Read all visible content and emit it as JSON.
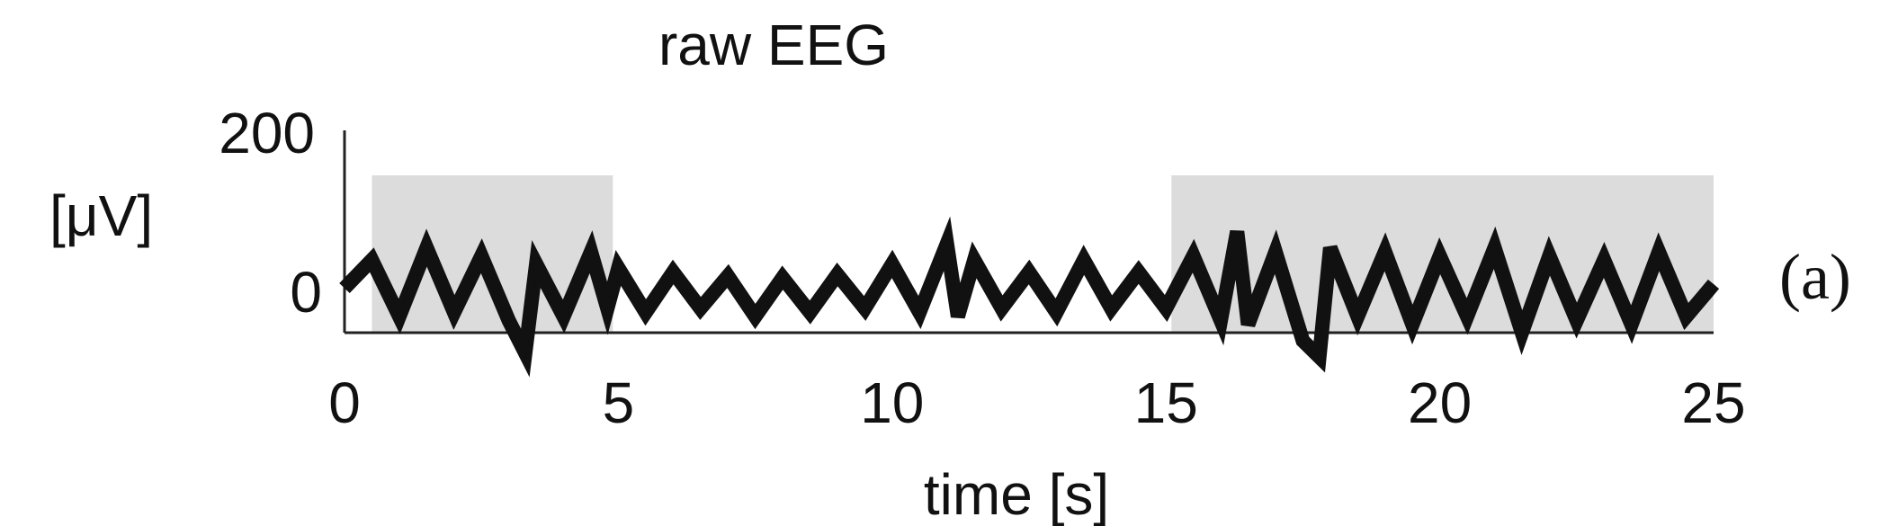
{
  "chart_data": {
    "type": "line",
    "title": "raw EEG",
    "xlabel": "time [s]",
    "ylabel_value": "200",
    "ylabel_unit": "[μV]",
    "panel_label": "(a)",
    "xlim": [
      0,
      25
    ],
    "ylim": [
      -50,
      200
    ],
    "x_ticks": [
      "0",
      "5",
      "10",
      "15",
      "20",
      "25"
    ],
    "y_ticks": [
      "0"
    ],
    "grid": false,
    "legend": "none",
    "shaded_intervals": [
      {
        "start": 0.5,
        "end": 4.9
      },
      {
        "start": 15.1,
        "end": 25
      }
    ],
    "series": [
      {
        "color": "#111111",
        "x": [
          0,
          0.5,
          1,
          1.5,
          2,
          2.5,
          3,
          3.3,
          3.5,
          4,
          4.5,
          4.8,
          5,
          5.5,
          6,
          6.5,
          7,
          7.5,
          8,
          8.5,
          9,
          9.5,
          10,
          10.5,
          11,
          11.2,
          11.5,
          12,
          12.5,
          13,
          13.5,
          14,
          14.5,
          15,
          15.5,
          16,
          16.3,
          16.5,
          17,
          17.5,
          17.8,
          18,
          18.5,
          19,
          19.5,
          20,
          20.5,
          21,
          21.5,
          22,
          22.5,
          23,
          23.5,
          24,
          24.5,
          25
        ],
        "y": [
          5,
          40,
          -30,
          55,
          -25,
          45,
          -35,
          -75,
          35,
          -30,
          50,
          -20,
          30,
          -25,
          25,
          -20,
          20,
          -30,
          18,
          -25,
          22,
          -20,
          35,
          -25,
          60,
          -30,
          40,
          -20,
          25,
          -25,
          40,
          -20,
          25,
          -20,
          45,
          -35,
          75,
          -40,
          50,
          -60,
          -80,
          55,
          -30,
          50,
          -40,
          45,
          -30,
          55,
          -50,
          45,
          -35,
          40,
          -40,
          50,
          -30,
          10
        ]
      }
    ]
  }
}
